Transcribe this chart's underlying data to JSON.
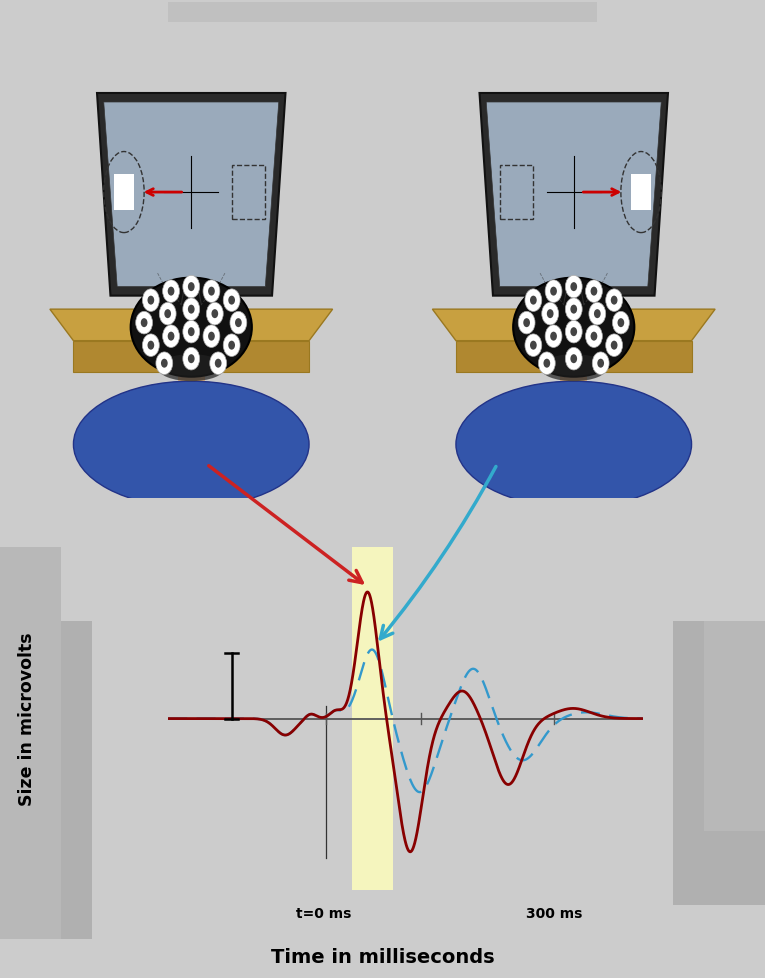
{
  "figure_bg": "#cccccc",
  "top_bg": "#ffffff",
  "bottom_outer_bg": "#cccccc",
  "bottom_white_bg": "#ffffff",
  "highlight_color": "#f5f5be",
  "ylabel": "Size in microvolts",
  "xlabel": "Time in milliseconds",
  "t0_label": "t=0 ms",
  "t300_label": "300 ms",
  "red_line_color": "#880000",
  "blue_line_color": "#3399cc",
  "axis_color": "#666666",
  "red_arrow_color": "#cc2222",
  "blue_arrow_color": "#33aacc",
  "monitor_face": "#8899aa",
  "monitor_frame": "#333333",
  "desk_color": "#c8a040",
  "desk_edge": "#9a7820",
  "eeg_cap": "#111111",
  "skin": "#d4a882",
  "shirt": "#3355aa",
  "electrode_white": "#ffffff",
  "electrode_dark": "#555555",
  "screen_bg": "#9aaabb",
  "gray_bar": "#c0c0c0",
  "left_gray_block1": "#b8b8b8",
  "left_gray_block2": "#c4c4c4",
  "right_gray_block1": "#b8b8b8",
  "right_gray_block2": "#c4c4c4"
}
